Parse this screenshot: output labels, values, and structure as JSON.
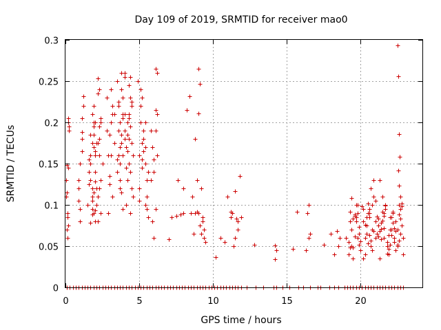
{
  "chart_data": {
    "type": "scatter",
    "title": "Day 109 of 2019, SRMTID for receiver mao0",
    "xlabel": "GPS time / hours",
    "ylabel": "SRMTID / TECUs",
    "xlim": [
      0,
      24.2
    ],
    "ylim": [
      0,
      0.3
    ],
    "grid": true,
    "x_ticks": [
      0,
      5,
      10,
      15,
      20
    ],
    "x_tick_labels": [
      "0",
      "5",
      "10",
      "15",
      "20"
    ],
    "y_ticks": [
      0,
      0.05,
      0.1,
      0.15,
      0.2,
      0.25,
      0.3
    ],
    "y_tick_labels": [
      "0",
      "0.05",
      "0.1",
      "0.15",
      "0.2",
      "0.25",
      "0.3"
    ],
    "marker": "+",
    "color": "#cc0000",
    "series": [
      {
        "name": "SRMTID",
        "x": [
          0.05,
          0.1,
          0.15,
          0.2,
          0.25,
          0.1,
          0.15,
          0.2,
          0.1,
          0.15,
          0.2,
          0.05,
          0.2,
          0.25,
          0.9,
          1.0,
          1.1,
          1.2,
          1.0,
          1.1,
          1.2,
          0.9,
          1.1,
          1.0,
          1.2,
          0.9,
          1.1,
          1.5,
          1.6,
          1.7,
          1.8,
          1.9,
          2.0,
          1.6,
          1.7,
          1.8,
          1.9,
          2.0,
          2.1,
          1.7,
          1.8,
          1.9,
          2.0,
          1.7,
          1.8,
          1.9,
          2.0,
          2.1,
          1.8,
          1.9,
          2.0,
          1.6,
          1.8,
          2.0,
          1.9,
          1.7,
          2.1,
          1.8,
          2.0,
          1.9,
          2.2,
          2.3,
          2.4,
          2.2,
          2.3,
          2.4,
          2.2,
          2.3,
          2.5,
          2.2,
          2.4,
          2.3,
          2.2,
          2.4,
          2.3,
          2.8,
          3.0,
          3.2,
          2.9,
          3.1,
          3.3,
          3.0,
          3.2,
          2.8,
          3.1,
          3.3,
          2.9,
          3.0,
          3.2,
          3.1,
          3.5,
          3.6,
          3.7,
          3.8,
          3.9,
          4.0,
          3.6,
          3.7,
          3.8,
          3.9,
          4.0,
          4.1,
          3.5,
          3.7,
          3.9,
          4.1,
          3.6,
          3.8,
          4.0,
          3.7,
          3.9,
          3.6,
          3.8,
          4.0,
          3.7,
          3.9,
          4.1,
          3.5,
          3.8,
          4.0,
          4.2,
          4.3,
          4.4,
          4.5,
          4.2,
          4.3,
          4.4,
          4.5,
          4.6,
          4.2,
          4.4,
          4.3,
          4.5,
          4.2,
          4.4,
          4.3,
          4.5,
          4.6,
          4.4,
          4.3,
          5.0,
          5.1,
          5.2,
          5.3,
          5.4,
          5.5,
          5.0,
          5.2,
          5.4,
          5.6,
          5.1,
          5.3,
          5.5,
          5.2,
          5.4,
          5.0,
          5.3,
          5.5,
          5.1,
          5.6,
          4.9,
          5.2,
          5.4,
          5.8,
          5.9,
          6.0,
          6.1,
          6.2,
          5.8,
          6.0,
          6.1,
          6.2,
          5.9,
          6.1,
          6.2,
          6.1,
          6.0,
          7.0,
          7.2,
          7.5,
          7.6,
          7.8,
          8.0,
          8.0,
          8.2,
          8.4,
          8.5,
          8.6,
          8.8,
          8.9,
          9.0,
          9.0,
          9.1,
          9.2,
          9.3,
          9.4,
          8.7,
          8.9,
          8.8,
          9.2,
          9.4,
          9.5,
          9.3,
          9.1,
          9.0,
          10.2,
          10.5,
          10.8,
          11.0,
          11.2,
          11.3,
          11.4,
          11.5,
          11.6,
          11.7,
          11.8,
          11.9,
          11.2,
          11.5,
          11.7,
          12.8,
          14.2,
          14.3,
          14.2,
          15.4,
          15.7,
          16.3,
          16.4,
          16.5,
          16.5,
          16.6,
          17.5,
          18.0,
          18.4,
          18.5,
          18.6,
          18.2,
          19.0,
          19.2,
          19.3,
          19.4,
          19.5,
          19.6,
          19.7,
          19.8,
          19.9,
          20.0,
          19.3,
          19.5,
          19.7,
          19.9,
          19.2,
          19.4,
          19.6,
          19.8,
          20.0,
          19.3,
          19.6,
          19.9,
          19.5,
          19.8,
          19.4,
          19.7,
          20.1,
          20.2,
          20.3,
          20.4,
          20.5,
          20.6,
          20.7,
          20.8,
          20.9,
          21.0,
          20.2,
          20.4,
          20.6,
          20.8,
          21.0,
          20.3,
          20.5,
          20.7,
          20.9,
          20.1,
          20.4,
          20.6,
          20.8,
          20.3,
          20.5,
          20.7,
          20.9,
          20.2,
          20.6,
          21.0,
          21.1,
          21.2,
          21.3,
          21.4,
          21.5,
          21.6,
          21.7,
          21.8,
          21.9,
          22.0,
          21.2,
          21.4,
          21.6,
          21.8,
          22.0,
          21.3,
          21.5,
          21.7,
          21.9,
          21.1,
          21.4,
          21.6,
          21.8,
          21.3,
          21.5,
          21.7,
          21.9,
          21.2,
          21.6,
          22.0,
          22.1,
          22.2,
          22.3,
          22.4,
          22.5,
          22.6,
          22.7,
          22.8,
          22.9,
          22.1,
          22.3,
          22.5,
          22.7,
          22.9,
          22.2,
          22.4,
          22.6,
          22.8,
          22.1,
          22.3,
          22.5,
          22.7,
          22.2,
          22.4,
          22.6,
          22.8,
          22.5,
          22.55,
          22.6,
          22.65,
          22.55,
          22.6,
          22.7,
          0.1,
          0.3,
          0.5,
          0.7,
          0.9,
          1.1,
          1.3,
          1.5,
          1.7,
          1.9,
          2.1,
          2.3,
          2.5,
          2.7,
          2.9,
          3.1,
          3.3,
          3.5,
          3.7,
          3.9,
          4.1,
          4.3,
          4.5,
          4.7,
          4.9,
          5.1,
          5.3,
          5.5,
          5.7,
          5.9,
          6.1,
          6.3,
          6.5,
          6.7,
          6.9,
          7.1,
          7.3,
          7.5,
          7.7,
          7.9,
          8.1,
          8.3,
          8.5,
          8.7,
          8.9,
          9.1,
          9.3,
          9.5,
          9.7,
          9.9,
          10.1,
          10.3,
          10.5,
          10.7,
          10.9,
          11.1,
          11.3,
          11.5,
          11.7,
          11.9,
          12.3,
          12.9,
          13.4,
          14.1,
          14.3,
          14.7,
          15.2,
          15.8,
          16.1,
          16.6,
          17.1,
          17.3,
          17.9,
          18.2,
          18.5,
          18.9,
          19.1,
          19.3,
          19.5,
          19.7,
          19.9,
          20.1,
          20.3,
          20.5,
          20.7,
          20.9,
          21.1,
          21.3,
          21.5,
          21.7,
          21.9,
          22.1,
          22.3,
          22.5,
          22.7,
          22.9
        ],
        "y": [
          0.13,
          0.148,
          0.09,
          0.2,
          0.195,
          0.07,
          0.085,
          0.145,
          0.115,
          0.06,
          0.075,
          0.11,
          0.205,
          0.19,
          0.12,
          0.15,
          0.18,
          0.22,
          0.095,
          0.205,
          0.232,
          0.105,
          0.165,
          0.08,
          0.22,
          0.13,
          0.188,
          0.1,
          0.14,
          0.16,
          0.175,
          0.195,
          0.2,
          0.155,
          0.185,
          0.12,
          0.09,
          0.165,
          0.175,
          0.13,
          0.11,
          0.2,
          0.08,
          0.078,
          0.095,
          0.185,
          0.14,
          0.12,
          0.21,
          0.17,
          0.16,
          0.125,
          0.105,
          0.093,
          0.115,
          0.15,
          0.1,
          0.088,
          0.128,
          0.22,
          0.253,
          0.24,
          0.2,
          0.235,
          0.16,
          0.13,
          0.11,
          0.195,
          0.15,
          0.08,
          0.09,
          0.12,
          0.175,
          0.205,
          0.18,
          0.23,
          0.185,
          0.21,
          0.16,
          0.2,
          0.175,
          0.135,
          0.22,
          0.19,
          0.16,
          0.21,
          0.09,
          0.125,
          0.11,
          0.24,
          0.25,
          0.22,
          0.2,
          0.24,
          0.21,
          0.18,
          0.16,
          0.15,
          0.26,
          0.23,
          0.19,
          0.17,
          0.14,
          0.13,
          0.205,
          0.145,
          0.19,
          0.175,
          0.255,
          0.12,
          0.095,
          0.225,
          0.115,
          0.21,
          0.17,
          0.16,
          0.1,
          0.155,
          0.185,
          0.26,
          0.2,
          0.21,
          0.23,
          0.22,
          0.165,
          0.18,
          0.14,
          0.12,
          0.11,
          0.185,
          0.255,
          0.15,
          0.175,
          0.13,
          0.09,
          0.245,
          0.225,
          0.16,
          0.195,
          0.205,
          0.16,
          0.2,
          0.23,
          0.19,
          0.17,
          0.13,
          0.105,
          0.145,
          0.15,
          0.085,
          0.22,
          0.18,
          0.11,
          0.155,
          0.2,
          0.12,
          0.165,
          0.095,
          0.24,
          0.14,
          0.25,
          0.175,
          0.1,
          0.19,
          0.17,
          0.155,
          0.265,
          0.26,
          0.13,
          0.06,
          0.215,
          0.16,
          0.08,
          0.095,
          0.21,
          0.19,
          0.14,
          0.058,
          0.085,
          0.087,
          0.13,
          0.088,
          0.09,
          0.12,
          0.215,
          0.232,
          0.09,
          0.11,
          0.09,
          0.13,
          0.265,
          0.09,
          0.075,
          0.12,
          0.08,
          0.06,
          0.065,
          0.092,
          0.18,
          0.065,
          0.07,
          0.055,
          0.085,
          0.247,
          0.211,
          0.037,
          0.06,
          0.055,
          0.11,
          0.085,
          0.09,
          0.05,
          0.06,
          0.083,
          0.08,
          0.135,
          0.085,
          0.092,
          0.117,
          0.07,
          0.052,
          0.051,
          0.045,
          0.034,
          0.047,
          0.092,
          0.045,
          0.09,
          0.06,
          0.1,
          0.065,
          0.052,
          0.065,
          0.068,
          0.05,
          0.06,
          0.04,
          0.06,
          0.055,
          0.08,
          0.05,
          0.048,
          0.087,
          0.08,
          0.06,
          0.052,
          0.045,
          0.092,
          0.083,
          0.085,
          0.073,
          0.04,
          0.07,
          0.088,
          0.1,
          0.056,
          0.048,
          0.062,
          0.065,
          0.035,
          0.09,
          0.108,
          0.1,
          0.098,
          0.08,
          0.06,
          0.075,
          0.09,
          0.063,
          0.05,
          0.07,
          0.11,
          0.105,
          0.095,
          0.065,
          0.085,
          0.045,
          0.06,
          0.04,
          0.102,
          0.057,
          0.068,
          0.098,
          0.085,
          0.09,
          0.1,
          0.076,
          0.053,
          0.12,
          0.13,
          0.035,
          0.095,
          0.08,
          0.065,
          0.083,
          0.13,
          0.071,
          0.11,
          0.06,
          0.095,
          0.05,
          0.04,
          0.085,
          0.062,
          0.078,
          0.09,
          0.055,
          0.07,
          0.035,
          0.092,
          0.1,
          0.047,
          0.086,
          0.058,
          0.072,
          0.041,
          0.068,
          0.081,
          0.099,
          0.063,
          0.075,
          0.087,
          0.052,
          0.07,
          0.09,
          0.06,
          0.08,
          0.05,
          0.1,
          0.065,
          0.075,
          0.04,
          0.085,
          0.055,
          0.07,
          0.095,
          0.06,
          0.078,
          0.045,
          0.088,
          0.102,
          0.063,
          0.072,
          0.052,
          0.083,
          0.092,
          0.068,
          0.057,
          0.098,
          0.293,
          0.256,
          0.186,
          0.158,
          0.142,
          0.123,
          0.11,
          0,
          0,
          0,
          0,
          0,
          0,
          0,
          0,
          0,
          0,
          0,
          0,
          0,
          0,
          0,
          0,
          0,
          0,
          0,
          0,
          0,
          0,
          0,
          0,
          0,
          0,
          0,
          0,
          0,
          0,
          0,
          0,
          0,
          0,
          0,
          0,
          0,
          0,
          0,
          0,
          0,
          0,
          0,
          0,
          0,
          0,
          0,
          0,
          0,
          0,
          0,
          0,
          0,
          0,
          0,
          0,
          0,
          0,
          0,
          0,
          0,
          0,
          0,
          0,
          0,
          0,
          0,
          0,
          0,
          0,
          0,
          0,
          0,
          0,
          0,
          0,
          0,
          0,
          0,
          0,
          0,
          0,
          0,
          0,
          0,
          0,
          0,
          0,
          0,
          0,
          0,
          0,
          0,
          0,
          0,
          0
        ]
      }
    ]
  }
}
